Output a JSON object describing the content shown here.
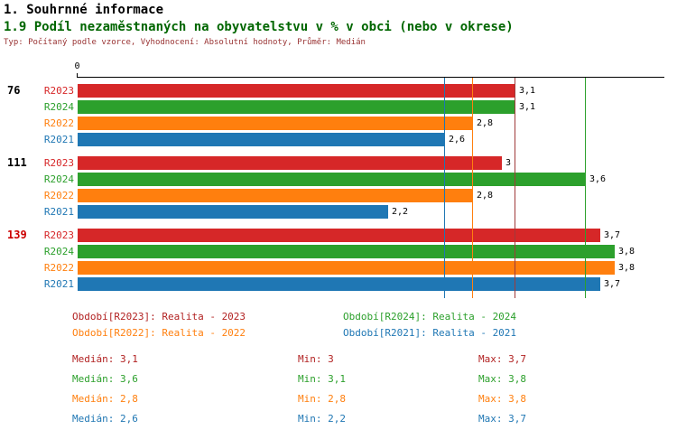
{
  "header": {
    "title1": "1. Souhrnné informace",
    "title2": "1.9 Podíl nezaměstnaných na obyvatelstvu v % v obci (nebo v okrese)",
    "subtitle": "Typ: Počítaný podle vzorce, Vyhodnocení: Absolutní hodnoty, Průměr: Medián"
  },
  "chart_data": {
    "type": "bar",
    "orientation": "horizontal",
    "title": "1.9 Podíl nezaměstnaných na obyvatelstvu v % v obci (nebo v okrese)",
    "x_axis": {
      "min": 0,
      "max": 4.15,
      "origin_tick_label": "0",
      "grid": false
    },
    "series_order": [
      "R2023",
      "R2024",
      "R2022",
      "R2021"
    ],
    "series_colors": {
      "R2023": "#d62728",
      "R2024": "#2ca02c",
      "R2022": "#ff7f0e",
      "R2021": "#1f77b4"
    },
    "groups": [
      {
        "label": "76",
        "label_color": "#000000",
        "values": {
          "R2023": 3.1,
          "R2024": 3.1,
          "R2022": 2.8,
          "R2021": 2.6
        },
        "value_labels": {
          "R2023": "3,1",
          "R2024": "3,1",
          "R2022": "2,8",
          "R2021": "2,6"
        }
      },
      {
        "label": "111",
        "label_color": "#000000",
        "values": {
          "R2023": 3.0,
          "R2024": 3.6,
          "R2022": 2.8,
          "R2021": 2.2
        },
        "value_labels": {
          "R2023": "3",
          "R2024": "3,6",
          "R2022": "2,8",
          "R2021": "2,2"
        }
      },
      {
        "label": "139",
        "label_color": "#cc0000",
        "values": {
          "R2023": 3.7,
          "R2024": 3.8,
          "R2022": 3.8,
          "R2021": 3.7
        },
        "value_labels": {
          "R2023": "3,7",
          "R2024": "3,8",
          "R2022": "3,8",
          "R2021": "3,7"
        }
      }
    ],
    "median_lines": [
      {
        "series": "R2023",
        "value": 3.1,
        "color": "#a03a3a"
      },
      {
        "series": "R2024",
        "value": 3.6,
        "color": "#2ca02c"
      },
      {
        "series": "R2022",
        "value": 2.8,
        "color": "#ff7f0e"
      },
      {
        "series": "R2021",
        "value": 2.6,
        "color": "#1f77b4"
      }
    ]
  },
  "legend": {
    "items": [
      {
        "label": "Období[R2023]: Realita - 2023",
        "color": "#b22222"
      },
      {
        "label": "Období[R2024]: Realita - 2024",
        "color": "#2ca02c"
      },
      {
        "label": "Období[R2022]: Realita - 2022",
        "color": "#ff7f0e"
      },
      {
        "label": "Období[R2021]: Realita - 2021",
        "color": "#1f77b4"
      }
    ]
  },
  "stats": {
    "rows": [
      {
        "median": "Medián: 3,1",
        "min": "Min: 3",
        "max": "Max: 3,7",
        "color": "#b22222"
      },
      {
        "median": "Medián: 3,6",
        "min": "Min: 3,1",
        "max": "Max: 3,8",
        "color": "#2ca02c"
      },
      {
        "median": "Medián: 2,8",
        "min": "Min: 2,8",
        "max": "Max: 3,8",
        "color": "#ff7f0e"
      },
      {
        "median": "Medián: 2,6",
        "min": "Min: 2,2",
        "max": "Max: 3,7",
        "color": "#1f77b4"
      }
    ]
  }
}
